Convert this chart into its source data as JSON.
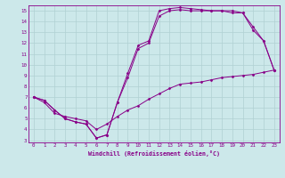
{
  "xlabel": "Windchill (Refroidissement éolien,°C)",
  "xlim": [
    -0.5,
    23.5
  ],
  "ylim": [
    2.8,
    15.5
  ],
  "xticks": [
    0,
    1,
    2,
    3,
    4,
    5,
    6,
    7,
    8,
    9,
    10,
    11,
    12,
    13,
    14,
    15,
    16,
    17,
    18,
    19,
    20,
    21,
    22,
    23
  ],
  "yticks": [
    3,
    4,
    5,
    6,
    7,
    8,
    9,
    10,
    11,
    12,
    13,
    14,
    15
  ],
  "bg_color": "#cce8ea",
  "line_color": "#880088",
  "grid_color": "#b0d0d2",
  "series": [
    {
      "x": [
        0,
        1,
        2,
        3,
        4,
        5,
        6,
        7,
        8,
        9,
        10,
        11,
        12,
        13,
        14,
        15,
        16,
        17,
        18,
        19,
        20,
        21,
        22,
        23
      ],
      "y": [
        7.0,
        6.7,
        5.8,
        5.0,
        4.7,
        4.5,
        3.2,
        3.5,
        6.5,
        9.2,
        11.8,
        12.2,
        15.0,
        15.2,
        15.3,
        15.2,
        15.1,
        15.0,
        15.0,
        15.0,
        14.8,
        13.2,
        12.2,
        9.5
      ]
    },
    {
      "x": [
        0,
        1,
        2,
        3,
        4,
        5,
        6,
        7,
        8,
        9,
        10,
        11,
        12,
        13,
        14,
        15,
        16,
        17,
        18,
        19,
        20,
        21,
        22,
        23
      ],
      "y": [
        7.0,
        6.7,
        5.8,
        5.0,
        4.7,
        4.5,
        3.2,
        3.5,
        6.5,
        8.8,
        11.5,
        12.0,
        14.5,
        15.0,
        15.1,
        15.0,
        15.0,
        15.0,
        15.0,
        14.8,
        14.8,
        13.5,
        12.2,
        9.5
      ]
    },
    {
      "x": [
        0,
        1,
        2,
        3,
        4,
        5,
        6,
        7,
        8,
        9,
        10,
        11,
        12,
        13,
        14,
        15,
        16,
        17,
        18,
        19,
        20,
        21,
        22,
        23
      ],
      "y": [
        7.0,
        6.5,
        5.5,
        5.2,
        5.0,
        4.8,
        4.0,
        4.5,
        5.2,
        5.8,
        6.2,
        6.8,
        7.3,
        7.8,
        8.2,
        8.3,
        8.4,
        8.6,
        8.8,
        8.9,
        9.0,
        9.1,
        9.3,
        9.5
      ]
    }
  ]
}
